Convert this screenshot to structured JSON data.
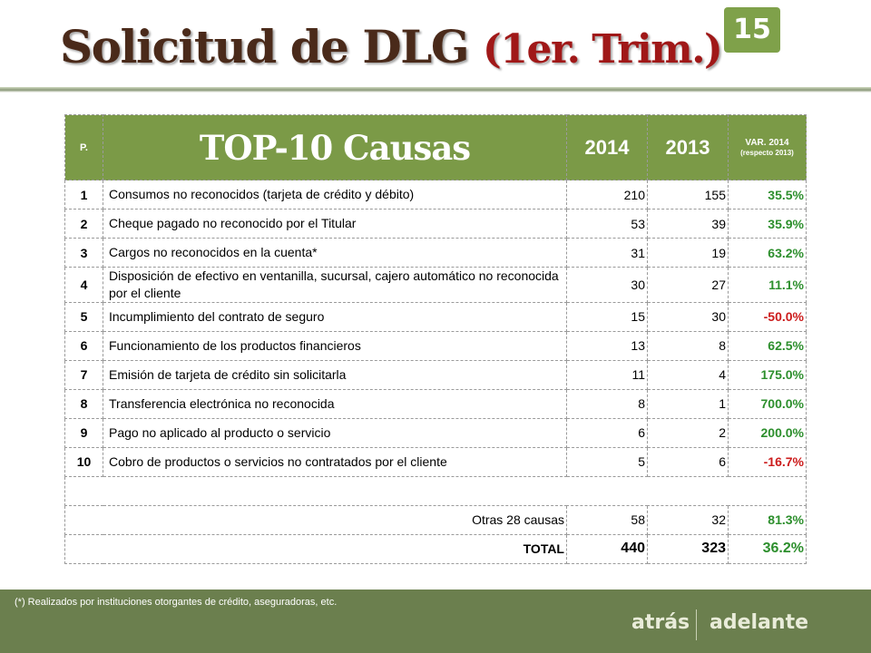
{
  "slide": {
    "title_main": "Solicitud de DLG",
    "title_paren": "(1er. Trim.)",
    "page_number": "15"
  },
  "table": {
    "header": {
      "p": "P.",
      "causes": "TOP-10 Causas",
      "year_current": "2014",
      "year_prev": "2013",
      "var_label": "VAR. 2014",
      "var_sub": "(respecto 2013)"
    },
    "rows": [
      {
        "n": "1",
        "cause": "Consumos no reconocidos (tarjeta de crédito y débito)",
        "y2014": "210",
        "y2013": "155",
        "var": "35.5%"
      },
      {
        "n": "2",
        "cause": "Cheque pagado no reconocido por el Titular",
        "y2014": "53",
        "y2013": "39",
        "var": "35.9%"
      },
      {
        "n": "3",
        "cause": "Cargos no reconocidos en la cuenta*",
        "y2014": "31",
        "y2013": "19",
        "var": "63.2%"
      },
      {
        "n": "4",
        "cause": "Disposición de efectivo en ventanilla, sucursal, cajero automático no reconocida por el cliente",
        "y2014": "30",
        "y2013": "27",
        "var": "11.1%"
      },
      {
        "n": "5",
        "cause": "Incumplimiento del contrato de seguro",
        "y2014": "15",
        "y2013": "30",
        "var": "-50.0%"
      },
      {
        "n": "6",
        "cause": "Funcionamiento de los productos financieros",
        "y2014": "13",
        "y2013": "8",
        "var": "62.5%"
      },
      {
        "n": "7",
        "cause": "Emisión de tarjeta de crédito sin solicitarla",
        "y2014": "11",
        "y2013": "4",
        "var": "175.0%"
      },
      {
        "n": "8",
        "cause": "Transferencia electrónica no reconocida",
        "y2014": "8",
        "y2013": "1",
        "var": "700.0%"
      },
      {
        "n": "9",
        "cause": "Pago no aplicado al producto o servicio",
        "y2014": "6",
        "y2013": "2",
        "var": "200.0%"
      },
      {
        "n": "10",
        "cause": "Cobro de productos o servicios no contratados por el cliente",
        "y2014": "5",
        "y2013": "6",
        "var": "-16.7%"
      }
    ],
    "others": {
      "label": "Otras 28 causas",
      "y2014": "58",
      "y2013": "32",
      "var": "81.3%"
    },
    "total": {
      "label": "TOTAL",
      "y2014": "440",
      "y2013": "323",
      "var": "36.2%"
    }
  },
  "footer": {
    "note": "(*)  Realizados por  instituciones otorgantes de crédito, aseguradoras, etc.",
    "prev_label": "atrás",
    "next_label": "adelante"
  },
  "colors": {
    "header_green": "#7b9a47",
    "positive": "#2d8f2d",
    "negative": "#cc1c1c",
    "footer_bg": "#6b7f4e"
  }
}
